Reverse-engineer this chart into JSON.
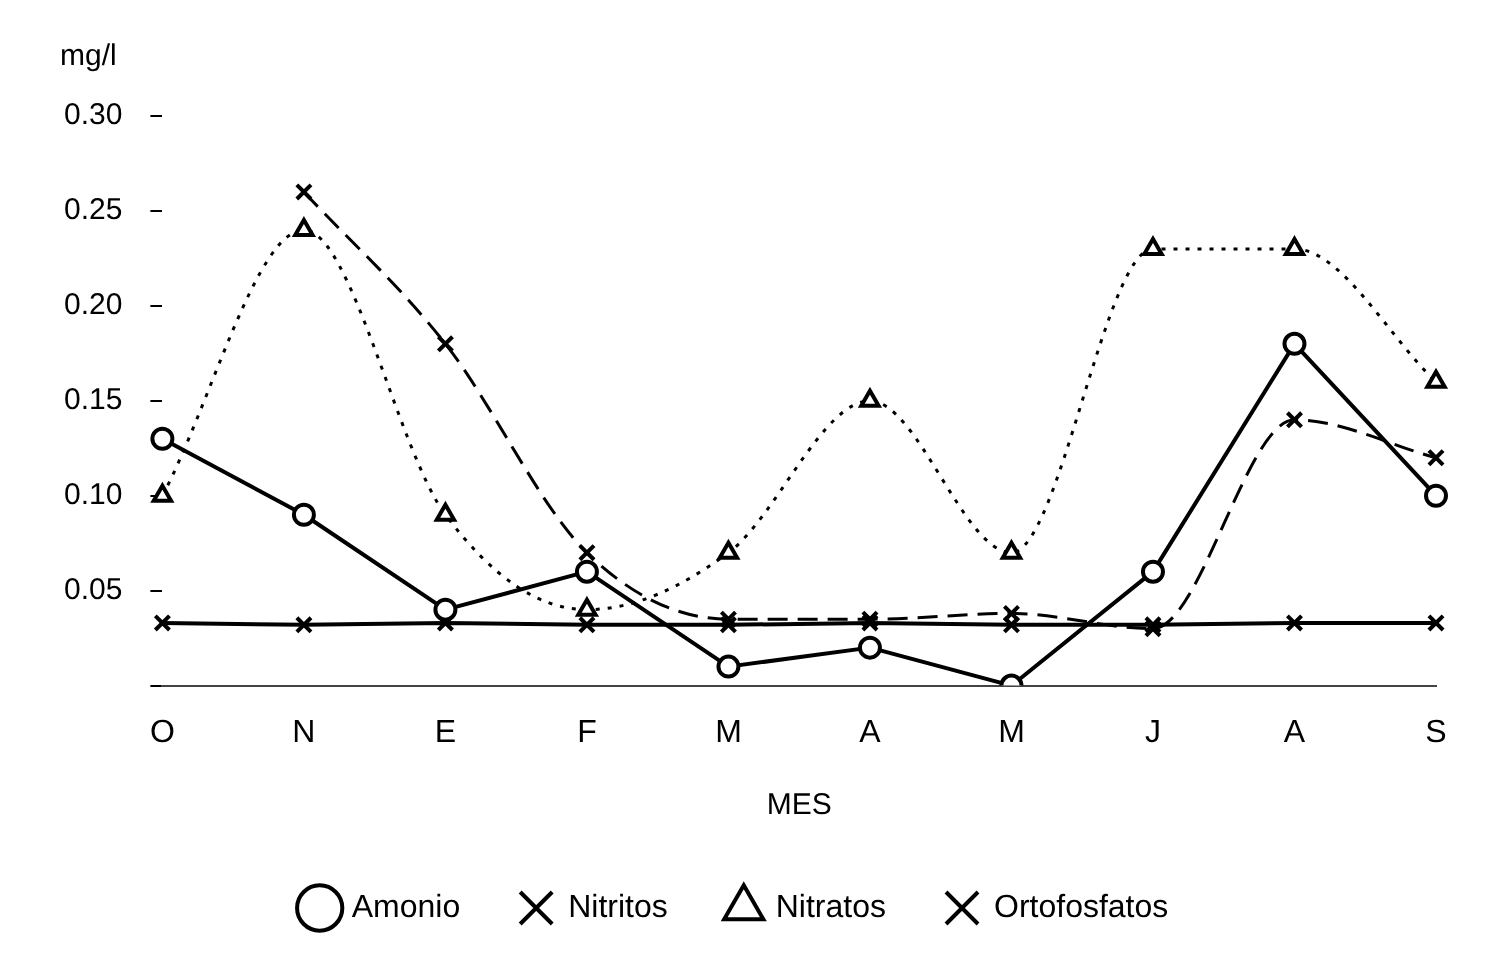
{
  "chart_data": {
    "type": "line",
    "ylabel": "mg/l",
    "xlabel": "MES",
    "categories": [
      "O",
      "N",
      "E",
      "F",
      "M",
      "A",
      "M",
      "J",
      "A",
      "S"
    ],
    "series": [
      {
        "name": "Amonio",
        "color": "#000000",
        "marker": "circle",
        "line_style": "solid",
        "values": [
          0.13,
          0.09,
          0.04,
          0.06,
          0.01,
          0.02,
          0.0,
          0.06,
          0.18,
          0.1
        ]
      },
      {
        "name": "Nitritos",
        "color": "#000000",
        "marker": "cross",
        "line_style": "solid",
        "values": [
          0.033,
          0.032,
          0.033,
          0.032,
          0.032,
          0.033,
          0.032,
          0.032,
          0.033,
          0.033
        ]
      },
      {
        "name": "Nitratos",
        "color": "#000000",
        "marker": "triangle",
        "line_style": "dotted",
        "values": [
          0.1,
          0.24,
          0.09,
          0.04,
          0.07,
          0.15,
          0.07,
          0.23,
          0.23,
          0.16
        ]
      },
      {
        "name": "Ortofosfatos",
        "color": "#000000",
        "marker": "cross",
        "line_style": "dashed",
        "values": [
          null,
          0.26,
          0.18,
          0.07,
          0.035,
          0.035,
          0.038,
          0.03,
          0.14,
          0.12
        ]
      }
    ],
    "ylim": [
      0,
      0.3
    ],
    "yticks": [
      {
        "value": 0,
        "label": null
      },
      0.05,
      {
        "value": 0.1,
        "label": "0.10"
      },
      0.15,
      {
        "value": 0.2,
        "label": "0.20"
      },
      0.25,
      {
        "value": 0.3,
        "label": "0.30"
      }
    ],
    "grid": false,
    "legend": "bottom"
  }
}
